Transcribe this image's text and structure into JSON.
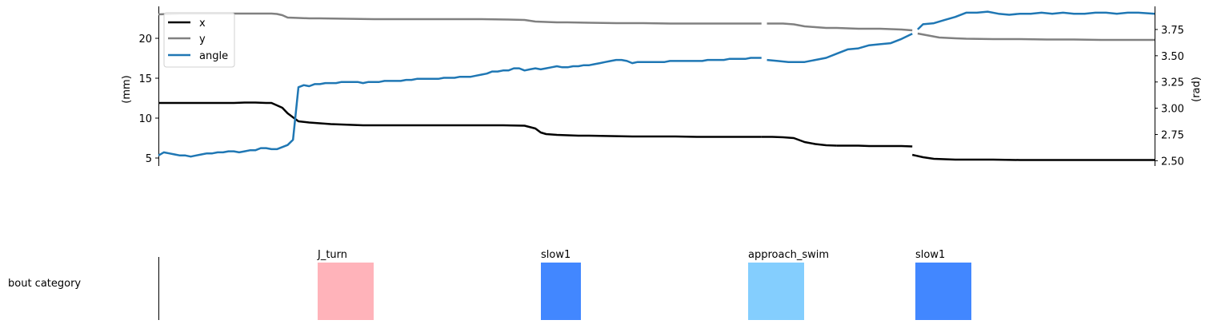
{
  "chart_data": [
    {
      "type": "line",
      "ylabel_left": "(mm)",
      "ylabel_right": "(rad)",
      "ylim_left": [
        4.0,
        24.0
      ],
      "ylim_right": [
        2.45,
        3.97
      ],
      "left_ticks": [
        5,
        10,
        15,
        20
      ],
      "right_ticks": [
        2.5,
        2.75,
        3.0,
        3.25,
        3.5,
        3.75
      ],
      "right_tick_labels": [
        "2.50",
        "2.75",
        "3.00",
        "3.25",
        "3.50",
        "3.75"
      ],
      "xlim": [
        0,
        127
      ],
      "legend_position": "top-left",
      "colors": {
        "x": "#000000",
        "y": "#808080",
        "angle": "#1f77b4"
      },
      "series": [
        {
          "name": "x",
          "axis": "left",
          "segments": [
            {
              "x": [
                0,
                2,
                4,
                6,
                8,
                10,
                12,
                14,
                16,
                18,
                20,
                21,
                22,
                23,
                24,
                25,
                26,
                28,
                30,
                32,
                34,
                36,
                38,
                40,
                44,
                48,
                52,
                56,
                60,
                64,
                68,
                70,
                71,
                72,
                73,
                74,
                76,
                78,
                80,
                84,
                88,
                92,
                96,
                100,
                102,
                104,
                106,
                108,
                110,
                112
              ],
              "y": [
                11.9,
                11.9,
                11.9,
                11.9,
                11.9,
                11.9,
                11.9,
                11.9,
                11.95,
                11.95,
                11.9,
                11.9,
                11.6,
                11.3,
                10.6,
                10.1,
                9.6,
                9.45,
                9.35,
                9.25,
                9.2,
                9.15,
                9.1,
                9.1,
                9.1,
                9.1,
                9.1,
                9.1,
                9.1,
                9.1,
                9.05,
                8.7,
                8.2,
                8.0,
                7.95,
                7.9,
                7.85,
                7.8,
                7.8,
                7.75,
                7.7,
                7.7,
                7.7,
                7.65,
                7.65,
                7.65,
                7.65,
                7.65,
                7.65,
                7.65
              ]
            },
            {
              "x": [
                112,
                114,
                116,
                118,
                120,
                122,
                124,
                126
              ],
              "y": [
                7.65,
                7.65,
                7.6,
                7.5,
                7.0,
                6.75,
                6.6,
                6.55
              ]
            },
            {
              "x": [
                126,
                128,
                130,
                132,
                134,
                136,
                138,
                140
              ],
              "y": [
                6.55,
                6.55,
                6.55,
                6.5,
                6.5,
                6.5,
                6.5,
                6.45
              ]
            },
            {
              "x": [
                140,
                142,
                144,
                146,
                148,
                150,
                155,
                160,
                165,
                170,
                175,
                180,
                185
              ],
              "y": [
                5.4,
                5.1,
                4.9,
                4.85,
                4.8,
                4.8,
                4.8,
                4.75,
                4.75,
                4.75,
                4.75,
                4.75,
                4.75
              ]
            }
          ]
        },
        {
          "name": "y",
          "axis": "left",
          "segments": [
            {
              "x": [
                0,
                2,
                4,
                6,
                8,
                10,
                12,
                14,
                16,
                18,
                20,
                21,
                22,
                23,
                24,
                26,
                28,
                30,
                35,
                40,
                45,
                50,
                55,
                60,
                65,
                68,
                70,
                72,
                74,
                76,
                80,
                85,
                90,
                95,
                100,
                105,
                110,
                112
              ],
              "y": [
                23.0,
                23.05,
                23.1,
                23.1,
                23.1,
                23.1,
                23.1,
                23.1,
                23.1,
                23.1,
                23.1,
                23.1,
                23.05,
                22.9,
                22.6,
                22.55,
                22.5,
                22.5,
                22.45,
                22.4,
                22.4,
                22.4,
                22.4,
                22.4,
                22.35,
                22.3,
                22.1,
                22.05,
                22.0,
                22.0,
                21.95,
                21.9,
                21.9,
                21.85,
                21.85,
                21.85,
                21.85,
                21.85
              ]
            },
            {
              "x": [
                113,
                116,
                118,
                120,
                122,
                124,
                126,
                128,
                130,
                132,
                134,
                136,
                138,
                140
              ],
              "y": [
                21.85,
                21.85,
                21.75,
                21.5,
                21.4,
                21.3,
                21.3,
                21.25,
                21.2,
                21.2,
                21.2,
                21.15,
                21.1,
                21.0
              ]
            },
            {
              "x": [
                141,
                143,
                145,
                148,
                150,
                155,
                160,
                165,
                170,
                175,
                180,
                185
              ],
              "y": [
                20.6,
                20.35,
                20.1,
                20.0,
                19.95,
                19.9,
                19.9,
                19.85,
                19.85,
                19.8,
                19.8,
                19.8
              ]
            }
          ]
        },
        {
          "name": "angle",
          "axis": "right",
          "segments": [
            {
              "x": [
                0,
                1,
                2,
                3,
                4,
                5,
                6,
                7,
                8,
                9,
                10,
                11,
                12,
                13,
                14,
                15,
                16,
                17,
                18,
                19,
                20,
                21,
                22,
                23,
                24,
                25,
                26,
                27,
                28,
                29,
                30,
                31,
                32,
                33,
                34,
                35,
                36,
                37,
                38,
                39,
                40,
                41,
                42,
                43,
                44,
                45,
                46,
                47,
                48,
                49,
                50,
                51,
                52,
                53,
                54,
                55,
                56,
                57,
                58,
                59,
                60,
                61,
                62,
                63,
                64,
                65,
                66,
                67,
                68,
                69,
                70,
                71,
                72,
                73,
                74,
                75,
                76,
                77,
                78,
                79,
                80,
                81,
                82,
                83,
                84,
                85,
                86,
                87,
                88,
                89,
                90,
                91,
                92,
                93,
                94,
                95,
                96,
                97,
                98,
                99,
                100,
                101,
                102,
                103,
                104,
                105,
                106,
                107,
                108,
                109,
                110,
                111,
                112
              ],
              "y": [
                2.55,
                2.58,
                2.57,
                2.56,
                2.55,
                2.55,
                2.54,
                2.55,
                2.56,
                2.57,
                2.57,
                2.58,
                2.58,
                2.59,
                2.59,
                2.58,
                2.59,
                2.6,
                2.6,
                2.62,
                2.62,
                2.61,
                2.61,
                2.63,
                2.65,
                2.7,
                3.2,
                3.22,
                3.21,
                3.23,
                3.23,
                3.24,
                3.24,
                3.24,
                3.25,
                3.25,
                3.25,
                3.25,
                3.24,
                3.25,
                3.25,
                3.25,
                3.26,
                3.26,
                3.26,
                3.26,
                3.27,
                3.27,
                3.28,
                3.28,
                3.28,
                3.28,
                3.28,
                3.29,
                3.29,
                3.29,
                3.3,
                3.3,
                3.3,
                3.31,
                3.32,
                3.33,
                3.35,
                3.35,
                3.36,
                3.36,
                3.38,
                3.38,
                3.36,
                3.37,
                3.38,
                3.37,
                3.38,
                3.39,
                3.4,
                3.39,
                3.39,
                3.4,
                3.4,
                3.41,
                3.41,
                3.42,
                3.43,
                3.44,
                3.45,
                3.46,
                3.46,
                3.45,
                3.43,
                3.44,
                3.44,
                3.44,
                3.44,
                3.44,
                3.44,
                3.45,
                3.45,
                3.45,
                3.45,
                3.45,
                3.45,
                3.45,
                3.46,
                3.46,
                3.46,
                3.46,
                3.47,
                3.47,
                3.47,
                3.47,
                3.48,
                3.48,
                3.48
              ]
            },
            {
              "x": [
                113,
                115,
                117,
                119,
                120,
                122,
                124,
                126,
                128,
                130,
                132,
                134,
                136,
                138,
                140
              ],
              "y": [
                3.46,
                3.45,
                3.44,
                3.44,
                3.44,
                3.46,
                3.48,
                3.52,
                3.56,
                3.57,
                3.6,
                3.61,
                3.62,
                3.66,
                3.71
              ]
            },
            {
              "x": [
                141,
                142,
                144,
                146,
                148,
                150,
                152,
                154,
                156,
                158,
                160,
                162,
                164,
                166,
                168,
                170,
                172,
                174,
                176,
                178,
                180,
                182,
                185
              ],
              "y": [
                3.75,
                3.8,
                3.81,
                3.84,
                3.87,
                3.91,
                3.91,
                3.92,
                3.9,
                3.89,
                3.9,
                3.9,
                3.91,
                3.9,
                3.91,
                3.9,
                3.9,
                3.91,
                3.91,
                3.9,
                3.91,
                3.91,
                3.9
              ]
            }
          ]
        }
      ],
      "legend": [
        {
          "label": "x",
          "color": "#000000"
        },
        {
          "label": "y",
          "color": "#808080"
        },
        {
          "label": "angle",
          "color": "#1f77b4"
        }
      ]
    },
    {
      "type": "bar",
      "ylabel": "bout category",
      "xlim": [
        0,
        127
      ],
      "bars": [
        {
          "label": "J_turn",
          "start": 0,
          "end": 7.3,
          "color": "#ffb3ba"
        },
        {
          "label": "slow1",
          "start": 0,
          "end": 5.2,
          "color": "#4287ff"
        },
        {
          "label": "approach_swim",
          "start": 0,
          "end": 7.2,
          "color": "#84cefe"
        },
        {
          "label": "slow1",
          "start": 0,
          "end": 7.2,
          "color": "#4287ff"
        }
      ]
    }
  ]
}
